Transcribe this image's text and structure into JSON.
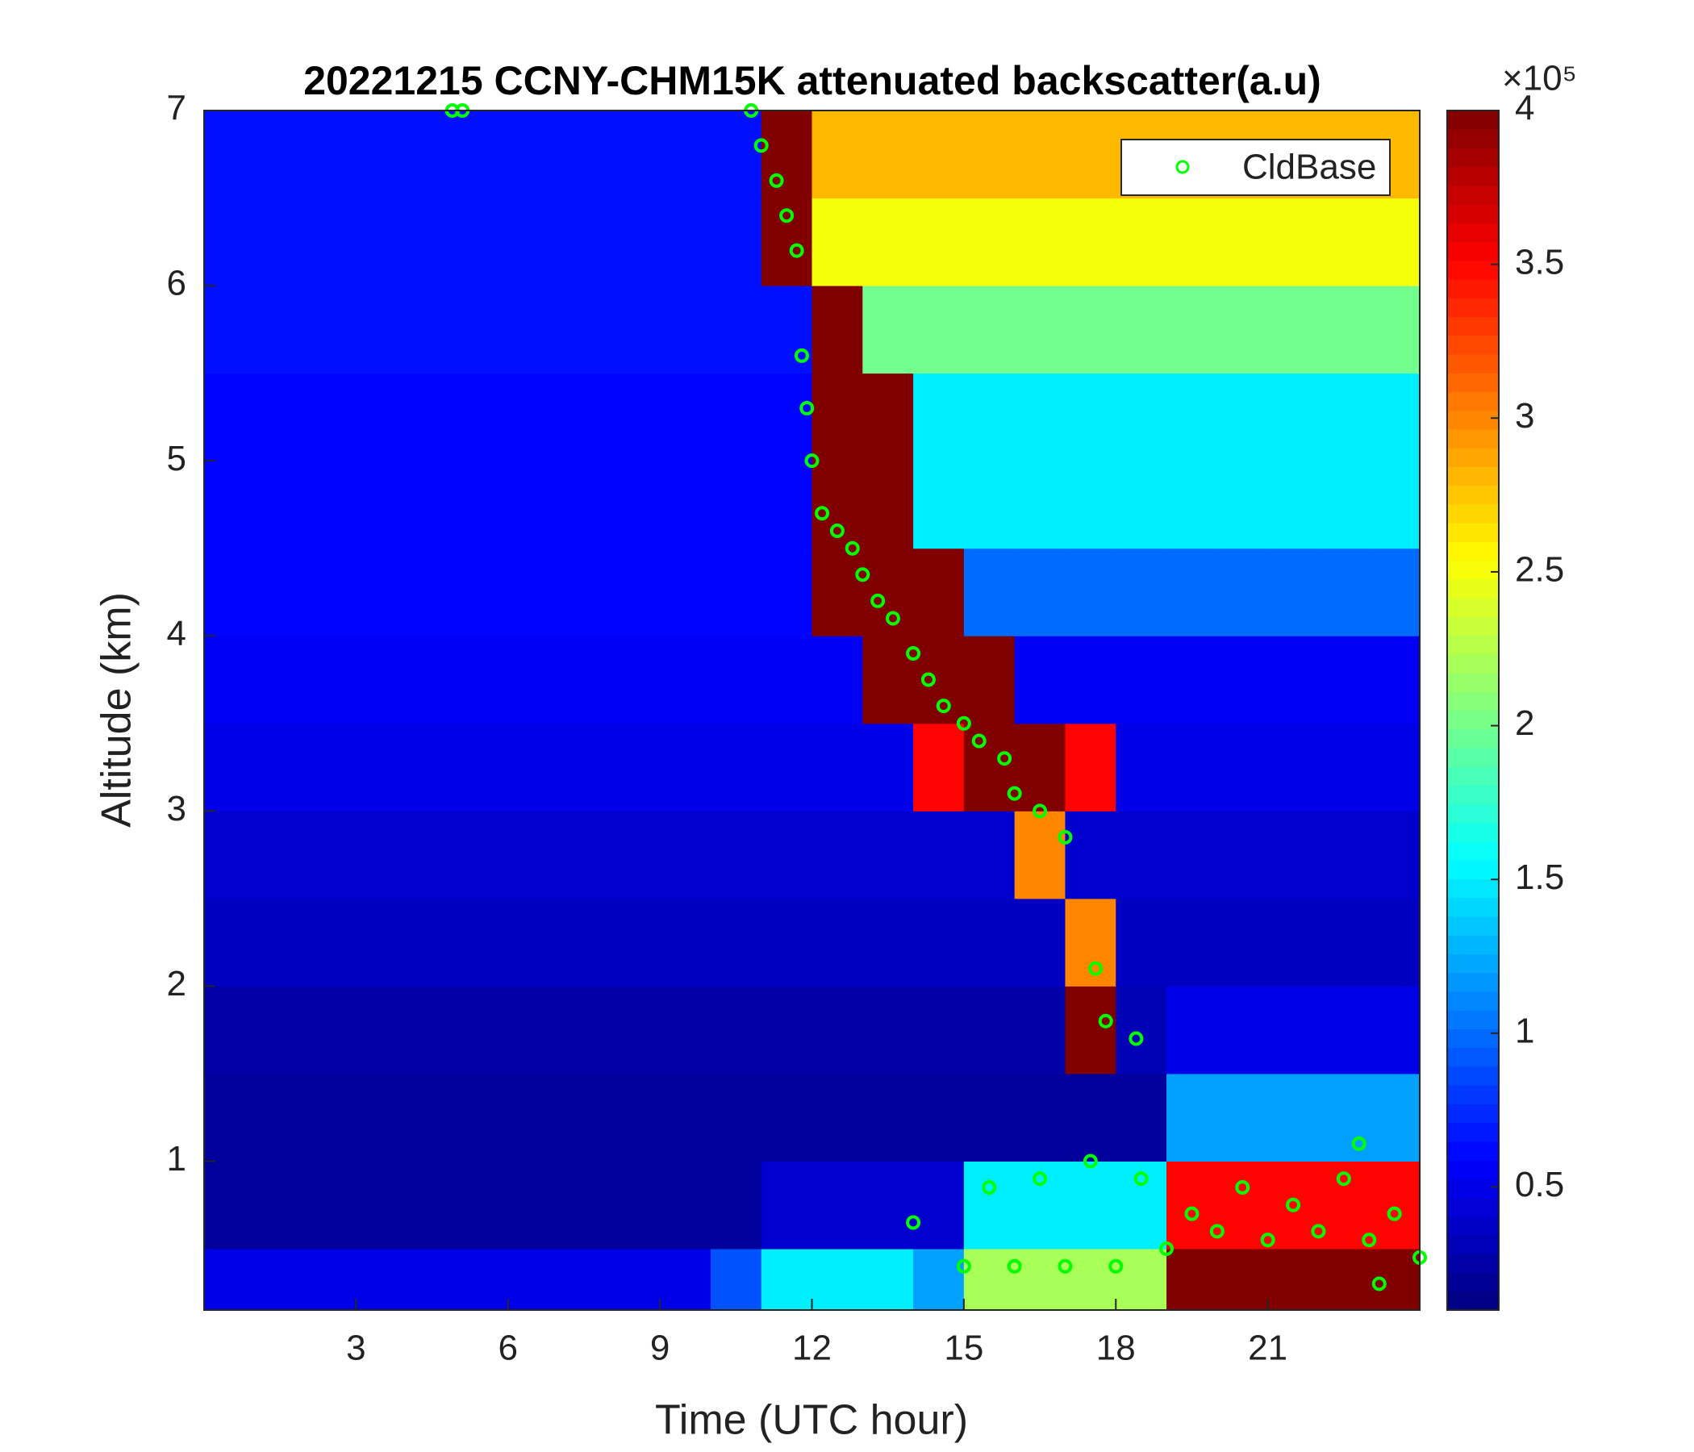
{
  "chart_data": {
    "type": "heatmap",
    "title": "20221215 CCNY-CHM15K attenuated backscatter(a.u)",
    "xlabel": "Time (UTC hour)",
    "ylabel": "Altitude (km)",
    "xlim": [
      0,
      24
    ],
    "ylim": [
      0.15,
      7
    ],
    "xticks": [
      3,
      6,
      9,
      12,
      15,
      18,
      21
    ],
    "yticks": [
      1,
      2,
      3,
      4,
      5,
      6,
      7
    ],
    "colormap": "jet",
    "clim": [
      0.1,
      4
    ],
    "cticks": [
      0.5,
      1,
      1.5,
      2,
      2.5,
      3,
      3.5,
      4
    ],
    "colorbar_exponent": "×10⁵",
    "x_edges": [
      0,
      1,
      2,
      3,
      4,
      5,
      6,
      7,
      8,
      9,
      10,
      11,
      12,
      13,
      14,
      15,
      16,
      17,
      18,
      19,
      20,
      21,
      22,
      23,
      24
    ],
    "y_edges": [
      0.15,
      0.5,
      1,
      1.5,
      2,
      2.5,
      3,
      3.5,
      4,
      4.5,
      5,
      5.5,
      6,
      6.5,
      7
    ],
    "z": [
      [
        0.5,
        0.5,
        0.5,
        0.5,
        0.5,
        0.5,
        0.5,
        0.5,
        0.5,
        0.5,
        0.9,
        1.5,
        1.5,
        1.5,
        1.2,
        2.2,
        2.2,
        2.2,
        2.2,
        4,
        4,
        4,
        4,
        4
      ],
      [
        0.2,
        0.2,
        0.2,
        0.2,
        0.2,
        0.2,
        0.2,
        0.2,
        0.2,
        0.2,
        0.2,
        0.4,
        0.4,
        0.4,
        0.4,
        1.5,
        1.5,
        1.5,
        1.5,
        3.5,
        3.5,
        3.5,
        3.5,
        3.5
      ],
      [
        0.2,
        0.2,
        0.2,
        0.2,
        0.2,
        0.2,
        0.2,
        0.2,
        0.2,
        0.2,
        0.2,
        0.2,
        0.2,
        0.2,
        0.2,
        0.2,
        0.2,
        0.2,
        0.2,
        1.2,
        1.2,
        1.2,
        1.2,
        1.2
      ],
      [
        0.25,
        0.25,
        0.25,
        0.25,
        0.25,
        0.25,
        0.25,
        0.25,
        0.25,
        0.25,
        0.25,
        0.25,
        0.25,
        0.25,
        0.25,
        0.25,
        0.25,
        4,
        0.3,
        0.5,
        0.5,
        0.5,
        0.5,
        0.5
      ],
      [
        0.35,
        0.35,
        0.35,
        0.35,
        0.35,
        0.35,
        0.35,
        0.35,
        0.35,
        0.35,
        0.35,
        0.35,
        0.35,
        0.35,
        0.35,
        0.35,
        0.35,
        3,
        0.35,
        0.35,
        0.35,
        0.35,
        0.35,
        0.35
      ],
      [
        0.4,
        0.4,
        0.4,
        0.4,
        0.4,
        0.4,
        0.4,
        0.4,
        0.4,
        0.4,
        0.4,
        0.4,
        0.4,
        0.4,
        0.4,
        0.4,
        3,
        0.4,
        0.4,
        0.4,
        0.4,
        0.4,
        0.4,
        0.4
      ],
      [
        0.5,
        0.5,
        0.5,
        0.5,
        0.5,
        0.5,
        0.5,
        0.5,
        0.5,
        0.5,
        0.5,
        0.5,
        0.5,
        0.5,
        3.5,
        4,
        4,
        3.5,
        0.5,
        0.5,
        0.5,
        0.5,
        0.5,
        0.5
      ],
      [
        0.55,
        0.55,
        0.55,
        0.55,
        0.55,
        0.55,
        0.55,
        0.55,
        0.55,
        0.55,
        0.55,
        0.55,
        0.55,
        4,
        4,
        4,
        0.55,
        0.55,
        0.55,
        0.55,
        0.55,
        0.55,
        0.55,
        0.55
      ],
      [
        0.6,
        0.6,
        0.6,
        0.6,
        0.6,
        0.6,
        0.6,
        0.6,
        0.6,
        0.6,
        0.6,
        0.6,
        4,
        4,
        4,
        1,
        1,
        1,
        1,
        1,
        1,
        1,
        1,
        1
      ],
      [
        0.6,
        0.6,
        0.6,
        0.6,
        0.6,
        0.6,
        0.6,
        0.6,
        0.6,
        0.6,
        0.6,
        0.6,
        4,
        4,
        1.5,
        1.5,
        1.5,
        1.5,
        1.5,
        1.5,
        1.5,
        1.5,
        1.5,
        1.5
      ],
      [
        0.6,
        0.6,
        0.6,
        0.6,
        0.6,
        0.6,
        0.6,
        0.6,
        0.6,
        0.6,
        0.6,
        0.6,
        4,
        4,
        1.5,
        1.5,
        1.5,
        1.5,
        1.5,
        1.5,
        1.5,
        1.5,
        1.5,
        1.5
      ],
      [
        0.65,
        0.65,
        0.65,
        0.65,
        0.65,
        0.65,
        0.65,
        0.65,
        0.65,
        0.65,
        0.65,
        0.65,
        4,
        2,
        2,
        2,
        2,
        2,
        2,
        2,
        2,
        2,
        2,
        2
      ],
      [
        0.65,
        0.65,
        0.65,
        0.65,
        0.65,
        0.65,
        0.65,
        0.65,
        0.65,
        0.65,
        0.65,
        4,
        2.5,
        2.5,
        2.5,
        2.5,
        2.5,
        2.5,
        2.5,
        2.5,
        2.5,
        2.5,
        2.5,
        2.5
      ],
      [
        0.65,
        0.65,
        0.65,
        0.65,
        0.65,
        0.65,
        0.65,
        0.65,
        0.65,
        0.65,
        0.65,
        4,
        2.8,
        2.8,
        2.8,
        2.8,
        2.8,
        2.8,
        2.8,
        2.8,
        2.8,
        2.8,
        2.8,
        2.8
      ]
    ],
    "scatter": {
      "name": "CldBase",
      "color": "#00ff00",
      "x": [
        4.9,
        5.1,
        10.8,
        11.0,
        11.3,
        11.5,
        11.7,
        11.8,
        11.9,
        12.0,
        12.2,
        12.5,
        12.8,
        13.0,
        13.3,
        13.6,
        14.0,
        14.3,
        14.6,
        15.0,
        15.3,
        15.8,
        16.0,
        16.5,
        17.0,
        17.6,
        17.8,
        18.4,
        14.0,
        15.0,
        15.5,
        16.0,
        16.5,
        17.0,
        17.5,
        18.0,
        18.5,
        19.0,
        19.5,
        20.0,
        20.5,
        21.0,
        21.5,
        22.0,
        22.5,
        23.0,
        23.5,
        24.0,
        22.8,
        23.2
      ],
      "y": [
        7,
        7,
        7.0,
        6.8,
        6.6,
        6.4,
        6.2,
        5.6,
        5.3,
        5.0,
        4.7,
        4.6,
        4.5,
        4.35,
        4.2,
        4.1,
        3.9,
        3.75,
        3.6,
        3.5,
        3.4,
        3.3,
        3.1,
        3.0,
        2.85,
        2.1,
        1.8,
        1.7,
        0.65,
        0.4,
        0.85,
        0.4,
        0.9,
        0.4,
        1.0,
        0.4,
        0.9,
        0.5,
        0.7,
        0.6,
        0.85,
        0.55,
        0.75,
        0.6,
        0.9,
        0.55,
        0.7,
        0.45,
        1.1,
        0.3
      ]
    },
    "legend": "upper right"
  }
}
